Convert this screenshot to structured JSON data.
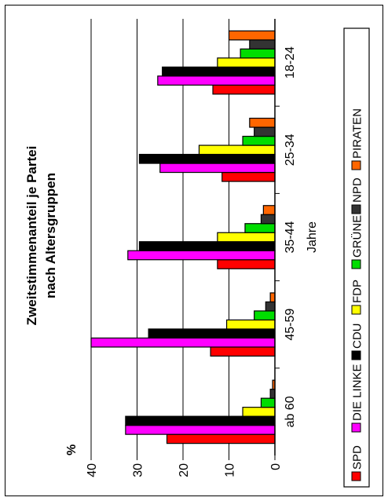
{
  "chart_data": {
    "type": "bar",
    "orientation": "rotated-90",
    "title_lines": [
      "Zweitstimmenanteil je Partei",
      "nach Altersgruppen"
    ],
    "ylabel": "%",
    "xlabel": "Jahre",
    "ylim": [
      0,
      40
    ],
    "yticks": [
      "0",
      "10",
      "20",
      "30",
      "40"
    ],
    "grid": true,
    "legend_position": "right",
    "categories": [
      "18-24",
      "25-34",
      "35-44",
      "45-59",
      "ab 60"
    ],
    "series": [
      {
        "name": "SPD",
        "color": "#ff0000",
        "values": [
          13.5,
          11.5,
          12.5,
          14,
          23.5
        ]
      },
      {
        "name": "DIE LINKE",
        "color": "#ff00ff",
        "values": [
          25.5,
          25,
          32,
          40,
          32.5
        ]
      },
      {
        "name": "CDU",
        "color": "#000000",
        "values": [
          24.5,
          29.5,
          29.5,
          27.5,
          32.5
        ]
      },
      {
        "name": "FDP",
        "color": "#ffff00",
        "values": [
          12.5,
          16.5,
          12.5,
          10.5,
          7
        ]
      },
      {
        "name": "GRÜNE",
        "color": "#00dd00",
        "values": [
          7.5,
          7,
          6.5,
          4.5,
          3
        ]
      },
      {
        "name": "NPD",
        "color": "#333333",
        "values": [
          5.5,
          4.5,
          3,
          2,
          1
        ]
      },
      {
        "name": "PIRATEN",
        "color": "#ff6600",
        "values": [
          10,
          5.5,
          2.5,
          1,
          0.5
        ]
      }
    ]
  }
}
